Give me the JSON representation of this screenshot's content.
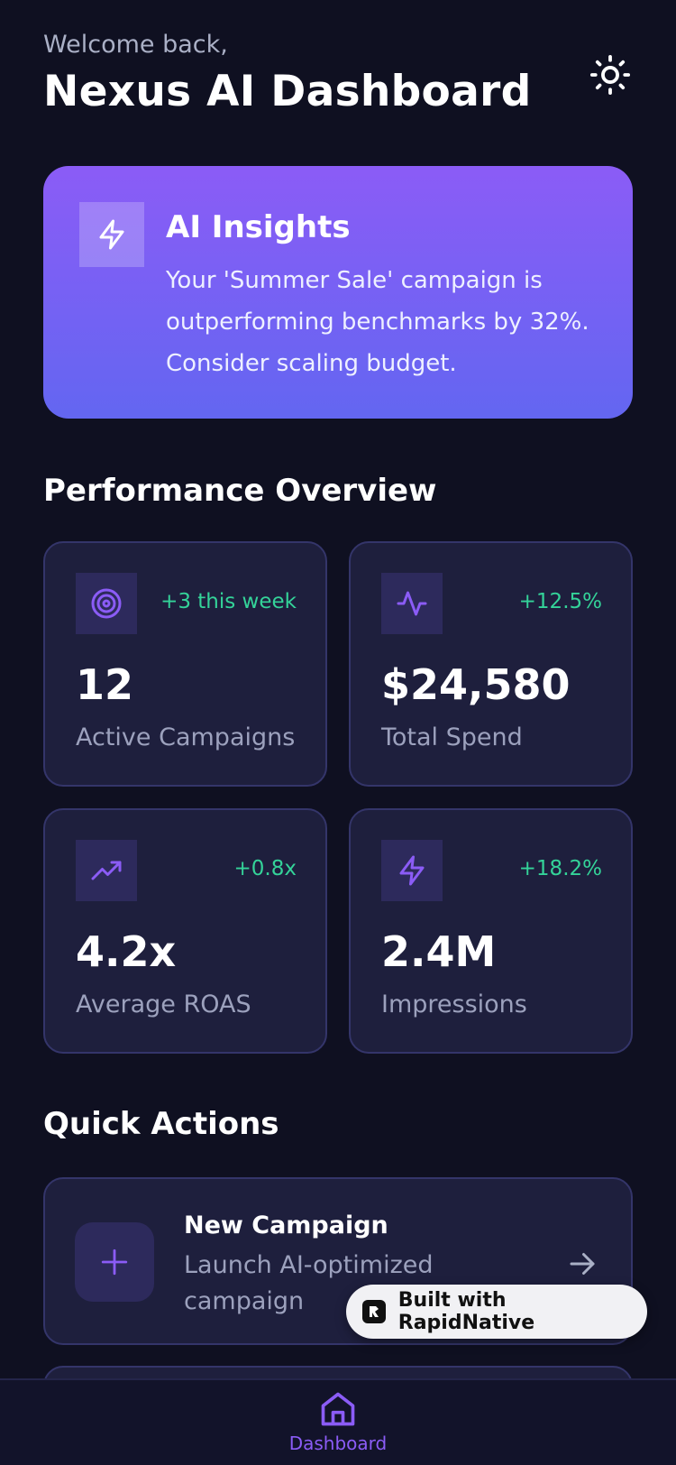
{
  "header": {
    "welcome": "Welcome back,",
    "title": "Nexus AI Dashboard"
  },
  "insights": {
    "title": "AI Insights",
    "body": "Your 'Summer Sale' campaign is outperforming benchmarks by 32%. Consider scaling budget."
  },
  "performance": {
    "title": "Performance Overview",
    "cards": [
      {
        "icon": "target-icon",
        "change": "+3 this week",
        "value": "12",
        "label": "Active Campaigns"
      },
      {
        "icon": "activity-icon",
        "change": "+12.5%",
        "value": "$24,580",
        "label": "Total Spend"
      },
      {
        "icon": "trending-up-icon",
        "change": "+0.8x",
        "value": "4.2x",
        "label": "Average ROAS"
      },
      {
        "icon": "lightning-icon",
        "change": "+18.2%",
        "value": "2.4M",
        "label": "Impressions"
      }
    ]
  },
  "quick_actions": {
    "title": "Quick Actions",
    "items": [
      {
        "title": "New Campaign",
        "subtitle": "Launch AI-optimized campaign"
      }
    ]
  },
  "badge": {
    "text": "Built with RapidNative"
  },
  "nav": {
    "dashboard": "Dashboard"
  },
  "colors": {
    "background": "#0f1021",
    "accent": "#8b5cf6",
    "positive": "#34d399",
    "card": "#1e1f3d"
  }
}
